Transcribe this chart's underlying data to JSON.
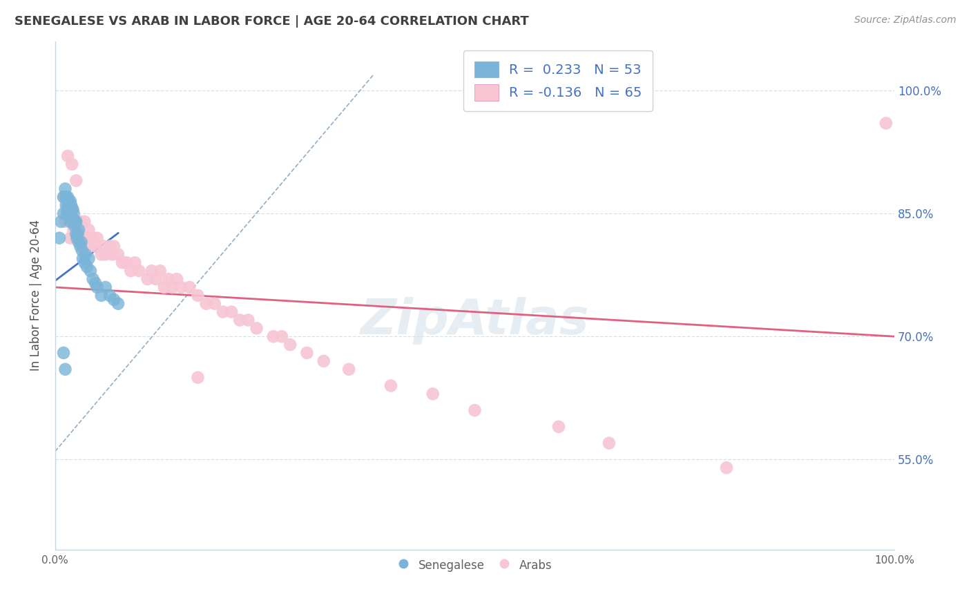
{
  "title": "SENEGALESE VS ARAB IN LABOR FORCE | AGE 20-64 CORRELATION CHART",
  "source_text": "Source: ZipAtlas.com",
  "ylabel": "In Labor Force | Age 20-64",
  "xlim": [
    0.0,
    1.0
  ],
  "ylim": [
    0.44,
    1.06
  ],
  "ytick_labels_right": [
    "55.0%",
    "70.0%",
    "85.0%",
    "100.0%"
  ],
  "ytick_vals_right": [
    0.55,
    0.7,
    0.85,
    1.0
  ],
  "legend_entry_blue": "R =  0.233   N = 53",
  "legend_entry_pink": "R = -0.136   N = 65",
  "senegalese_color": "#7ab4d8",
  "arab_color": "#f7c5d4",
  "blue_line_color": "#4472c4",
  "pink_line_color": "#e06080",
  "dashed_line_color": "#90aec8",
  "background_color": "#ffffff",
  "grid_color": "#d8e0e8",
  "title_color": "#404040",
  "source_color": "#909090",
  "r_value_color": "#4472c4",
  "senegalese_x": [
    0.005,
    0.007,
    0.01,
    0.01,
    0.012,
    0.013,
    0.013,
    0.014,
    0.015,
    0.015,
    0.015,
    0.016,
    0.016,
    0.017,
    0.017,
    0.018,
    0.018,
    0.018,
    0.019,
    0.019,
    0.02,
    0.02,
    0.021,
    0.021,
    0.022,
    0.022,
    0.023,
    0.024,
    0.025,
    0.025,
    0.026,
    0.027,
    0.028,
    0.028,
    0.03,
    0.031,
    0.032,
    0.033,
    0.035,
    0.036,
    0.038,
    0.04,
    0.042,
    0.045,
    0.048,
    0.05,
    0.055,
    0.06,
    0.065,
    0.07,
    0.075,
    0.01,
    0.012
  ],
  "senegalese_y": [
    0.82,
    0.84,
    0.87,
    0.85,
    0.88,
    0.86,
    0.87,
    0.85,
    0.86,
    0.87,
    0.85,
    0.855,
    0.865,
    0.85,
    0.86,
    0.84,
    0.855,
    0.865,
    0.845,
    0.86,
    0.845,
    0.855,
    0.84,
    0.855,
    0.84,
    0.85,
    0.835,
    0.84,
    0.825,
    0.84,
    0.82,
    0.825,
    0.815,
    0.83,
    0.81,
    0.815,
    0.805,
    0.795,
    0.79,
    0.8,
    0.785,
    0.795,
    0.78,
    0.77,
    0.765,
    0.76,
    0.75,
    0.76,
    0.75,
    0.745,
    0.74,
    0.68,
    0.66
  ],
  "arab_x": [
    0.01,
    0.012,
    0.015,
    0.018,
    0.02,
    0.022,
    0.025,
    0.027,
    0.028,
    0.03,
    0.032,
    0.035,
    0.038,
    0.04,
    0.042,
    0.045,
    0.048,
    0.05,
    0.055,
    0.058,
    0.06,
    0.065,
    0.068,
    0.07,
    0.075,
    0.08,
    0.085,
    0.09,
    0.095,
    0.1,
    0.11,
    0.115,
    0.12,
    0.125,
    0.13,
    0.135,
    0.14,
    0.145,
    0.15,
    0.16,
    0.17,
    0.18,
    0.19,
    0.2,
    0.21,
    0.22,
    0.23,
    0.24,
    0.015,
    0.02,
    0.025,
    0.17,
    0.26,
    0.27,
    0.28,
    0.3,
    0.32,
    0.35,
    0.4,
    0.45,
    0.5,
    0.6,
    0.66,
    0.8,
    0.99
  ],
  "arab_y": [
    0.87,
    0.84,
    0.85,
    0.82,
    0.84,
    0.83,
    0.82,
    0.83,
    0.82,
    0.84,
    0.82,
    0.84,
    0.82,
    0.83,
    0.81,
    0.82,
    0.81,
    0.82,
    0.8,
    0.81,
    0.8,
    0.81,
    0.8,
    0.81,
    0.8,
    0.79,
    0.79,
    0.78,
    0.79,
    0.78,
    0.77,
    0.78,
    0.77,
    0.78,
    0.76,
    0.77,
    0.76,
    0.77,
    0.76,
    0.76,
    0.75,
    0.74,
    0.74,
    0.73,
    0.73,
    0.72,
    0.72,
    0.71,
    0.92,
    0.91,
    0.89,
    0.65,
    0.7,
    0.7,
    0.69,
    0.68,
    0.67,
    0.66,
    0.64,
    0.63,
    0.61,
    0.59,
    0.57,
    0.54,
    0.96
  ],
  "senegalese_trend_x": [
    0.0,
    0.075
  ],
  "senegalese_trend_y": [
    0.768,
    0.826
  ],
  "arab_trend_x": [
    0.0,
    1.0
  ],
  "arab_trend_y": [
    0.76,
    0.7
  ],
  "diag_line_x": [
    0.0,
    0.38
  ],
  "diag_line_y": [
    0.56,
    1.02
  ]
}
